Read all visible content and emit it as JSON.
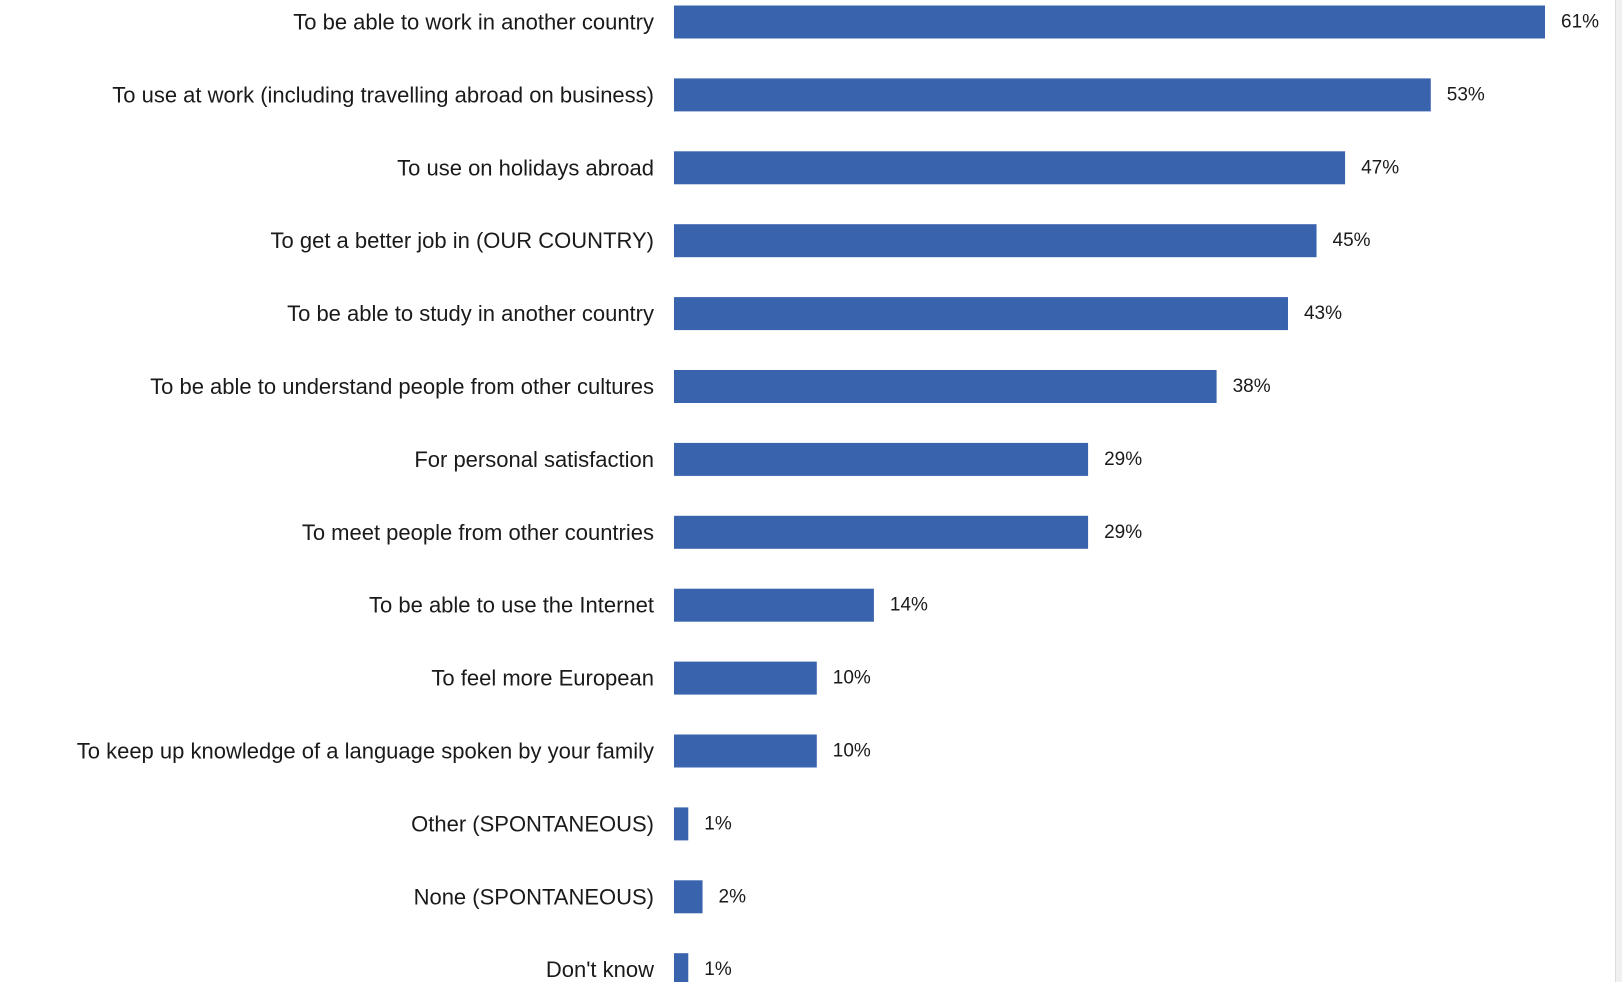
{
  "chart_data": {
    "type": "bar",
    "orientation": "horizontal",
    "bar_color": "#3a63ad",
    "value_suffix": "%",
    "categories": [
      "To be able to work in another country",
      "To use at work (including travelling abroad on business)",
      "To use on holidays abroad",
      "To get a better job in (OUR COUNTRY)",
      "To be able to study in another country",
      "To be able to understand people from other cultures",
      "For personal satisfaction",
      "To meet people from other countries",
      "To be able to use the Internet",
      "To feel more European",
      "To keep up knowledge of a language spoken by your family",
      "Other (SPONTANEOUS)",
      "None (SPONTANEOUS)",
      "Don't know"
    ],
    "values": [
      61,
      53,
      47,
      45,
      43,
      38,
      29,
      29,
      14,
      10,
      10,
      1,
      2,
      1
    ],
    "data_labels": [
      "61%",
      "53%",
      "47%",
      "45%",
      "43%",
      "38%",
      "29%",
      "29%",
      "14%",
      "10%",
      "10%",
      "1%",
      "2%",
      "1%"
    ],
    "xlim": [
      0,
      61
    ],
    "grid": false,
    "legend": "none"
  }
}
